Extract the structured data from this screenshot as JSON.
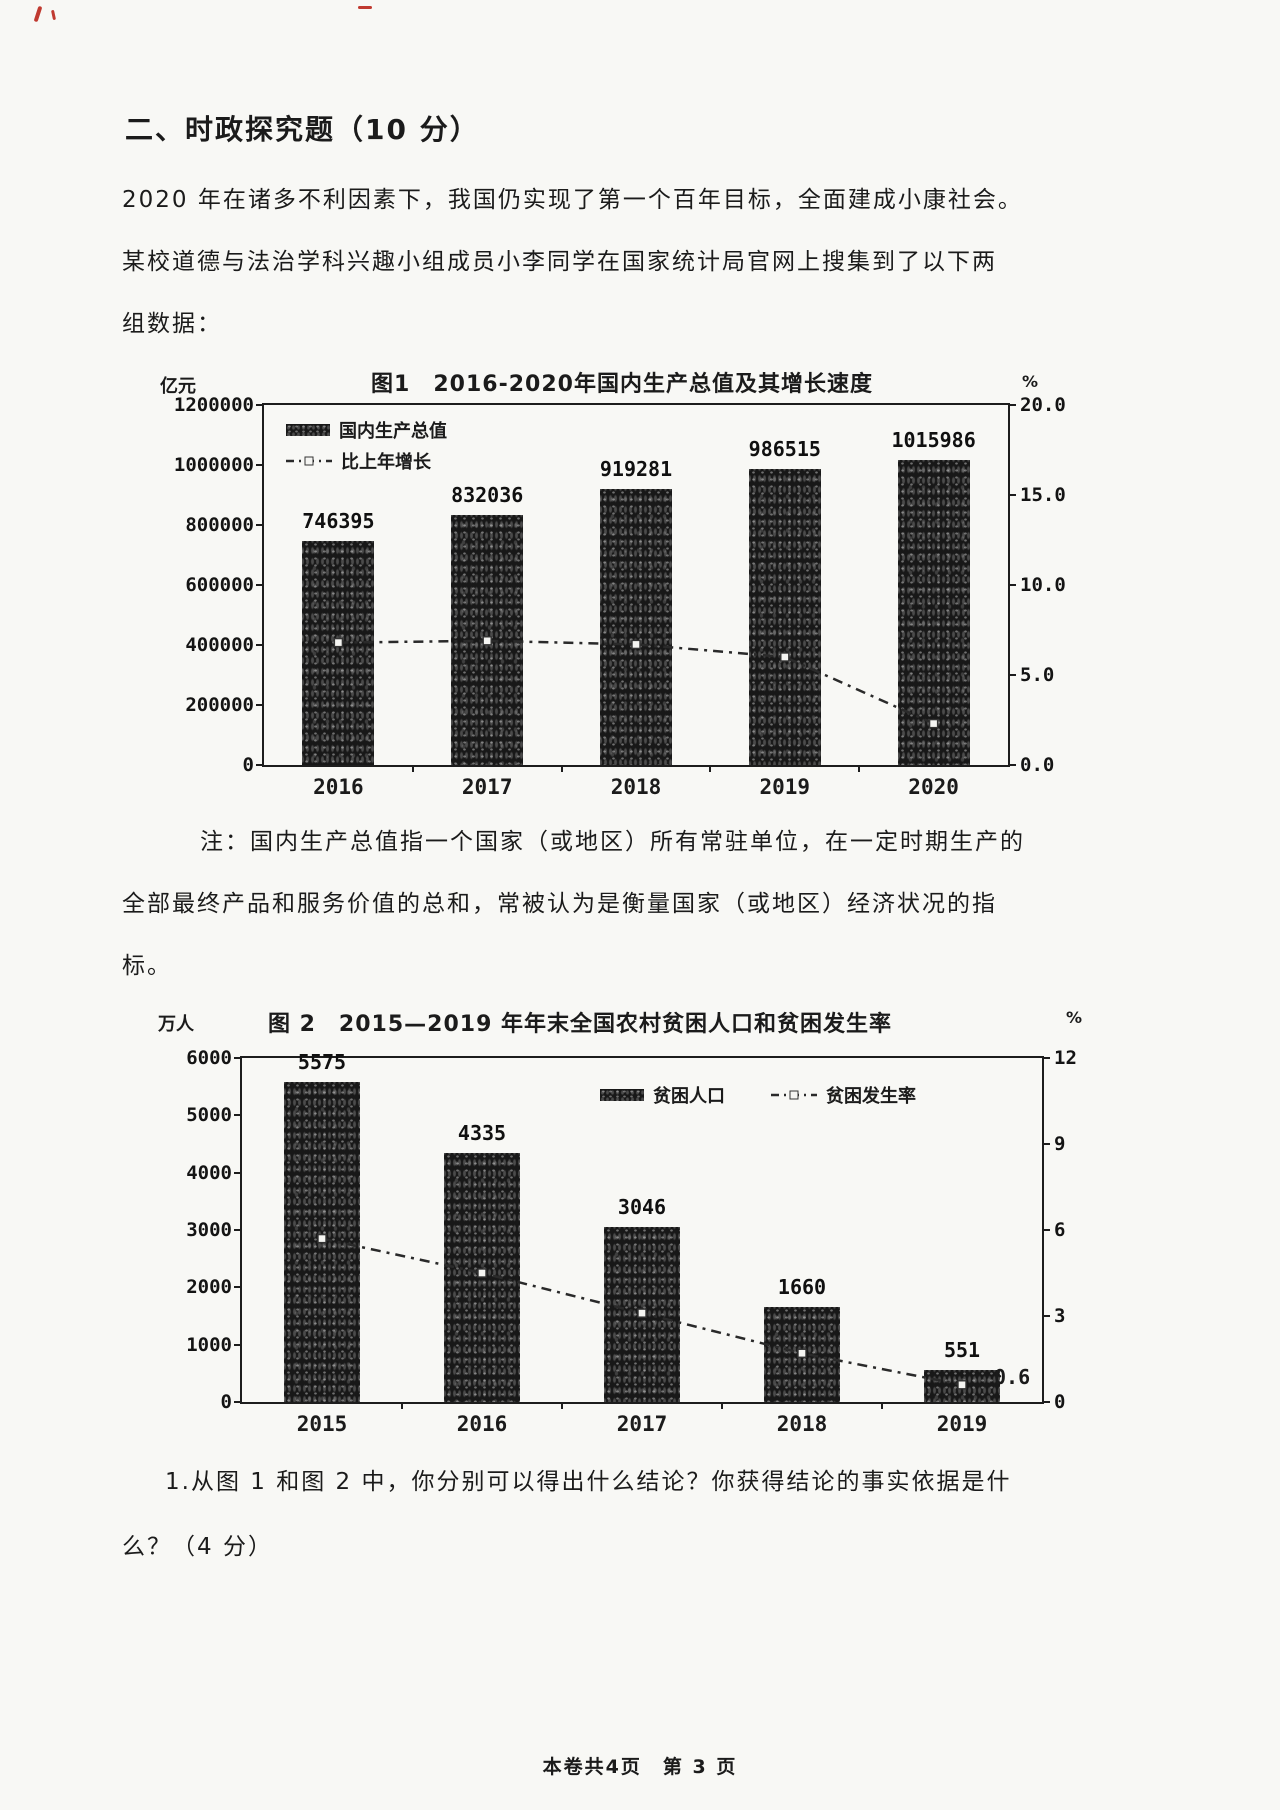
{
  "page": {
    "section_title": "二、时政探究题（10 分）",
    "intro_lines": [
      "2020 年在诸多不利因素下，我国仍实现了第一个百年目标，全面建成小康社会。",
      "某校道德与法治学科兴趣小组成员小李同学在国家统计局官网上搜集到了以下两",
      "组数据："
    ],
    "note_lines": [
      "注：国内生产总值指一个国家（或地区）所有常驻单位，在一定时期生产的",
      "全部最终产品和服务价值的总和，常被认为是衡量国家（或地区）经济状况的指",
      "标。"
    ],
    "question_lines": [
      "1.从图 1 和图 2 中，你分别可以得出什么结论？你获得结论的事实依据是什",
      "么？（4 分）"
    ],
    "footer": "本卷共4页　第 3 页"
  },
  "chart_data": [
    {
      "figure": "图1",
      "type": "bar+line",
      "title": "图1　2016-2020年国内生产总值及其增长速度",
      "categories": [
        "2016",
        "2017",
        "2018",
        "2019",
        "2020"
      ],
      "left_axis": {
        "unit": "亿元",
        "max": 1200000,
        "ticks": [
          1200000,
          1000000,
          800000,
          600000,
          400000,
          200000,
          0
        ]
      },
      "right_axis": {
        "unit": "%",
        "max": 20,
        "ticks": [
          "20.0",
          "15.0",
          "10.0",
          "5.0",
          "0.0"
        ]
      },
      "series": [
        {
          "name": "国内生产总值",
          "type": "bar",
          "values": [
            746395,
            832036,
            919281,
            986515,
            1015986
          ]
        },
        {
          "name": "比上年增长",
          "type": "line",
          "values": [
            6.8,
            6.9,
            6.7,
            6.0,
            2.3
          ]
        }
      ],
      "legend_position": "top-left",
      "grid": false
    },
    {
      "figure": "图2",
      "type": "bar+line",
      "title": "图 2　2015—2019 年年末全国农村贫困人口和贫困发生率",
      "categories": [
        "2015",
        "2016",
        "2017",
        "2018",
        "2019"
      ],
      "left_axis": {
        "unit": "万人",
        "max": 6000,
        "ticks": [
          6000,
          5000,
          4000,
          3000,
          2000,
          1000,
          0
        ]
      },
      "right_axis": {
        "unit": "%",
        "max": 12,
        "ticks": [
          "12",
          "9",
          "6",
          "3",
          "0"
        ]
      },
      "series": [
        {
          "name": "贫困人口",
          "type": "bar",
          "values": [
            5575,
            4335,
            3046,
            1660,
            551
          ]
        },
        {
          "name": "贫困发生率",
          "type": "line",
          "values": [
            5.7,
            4.5,
            3.1,
            1.7,
            0.6
          ],
          "end_label": "0.6"
        }
      ],
      "legend_position": "top-right",
      "grid": false
    }
  ]
}
